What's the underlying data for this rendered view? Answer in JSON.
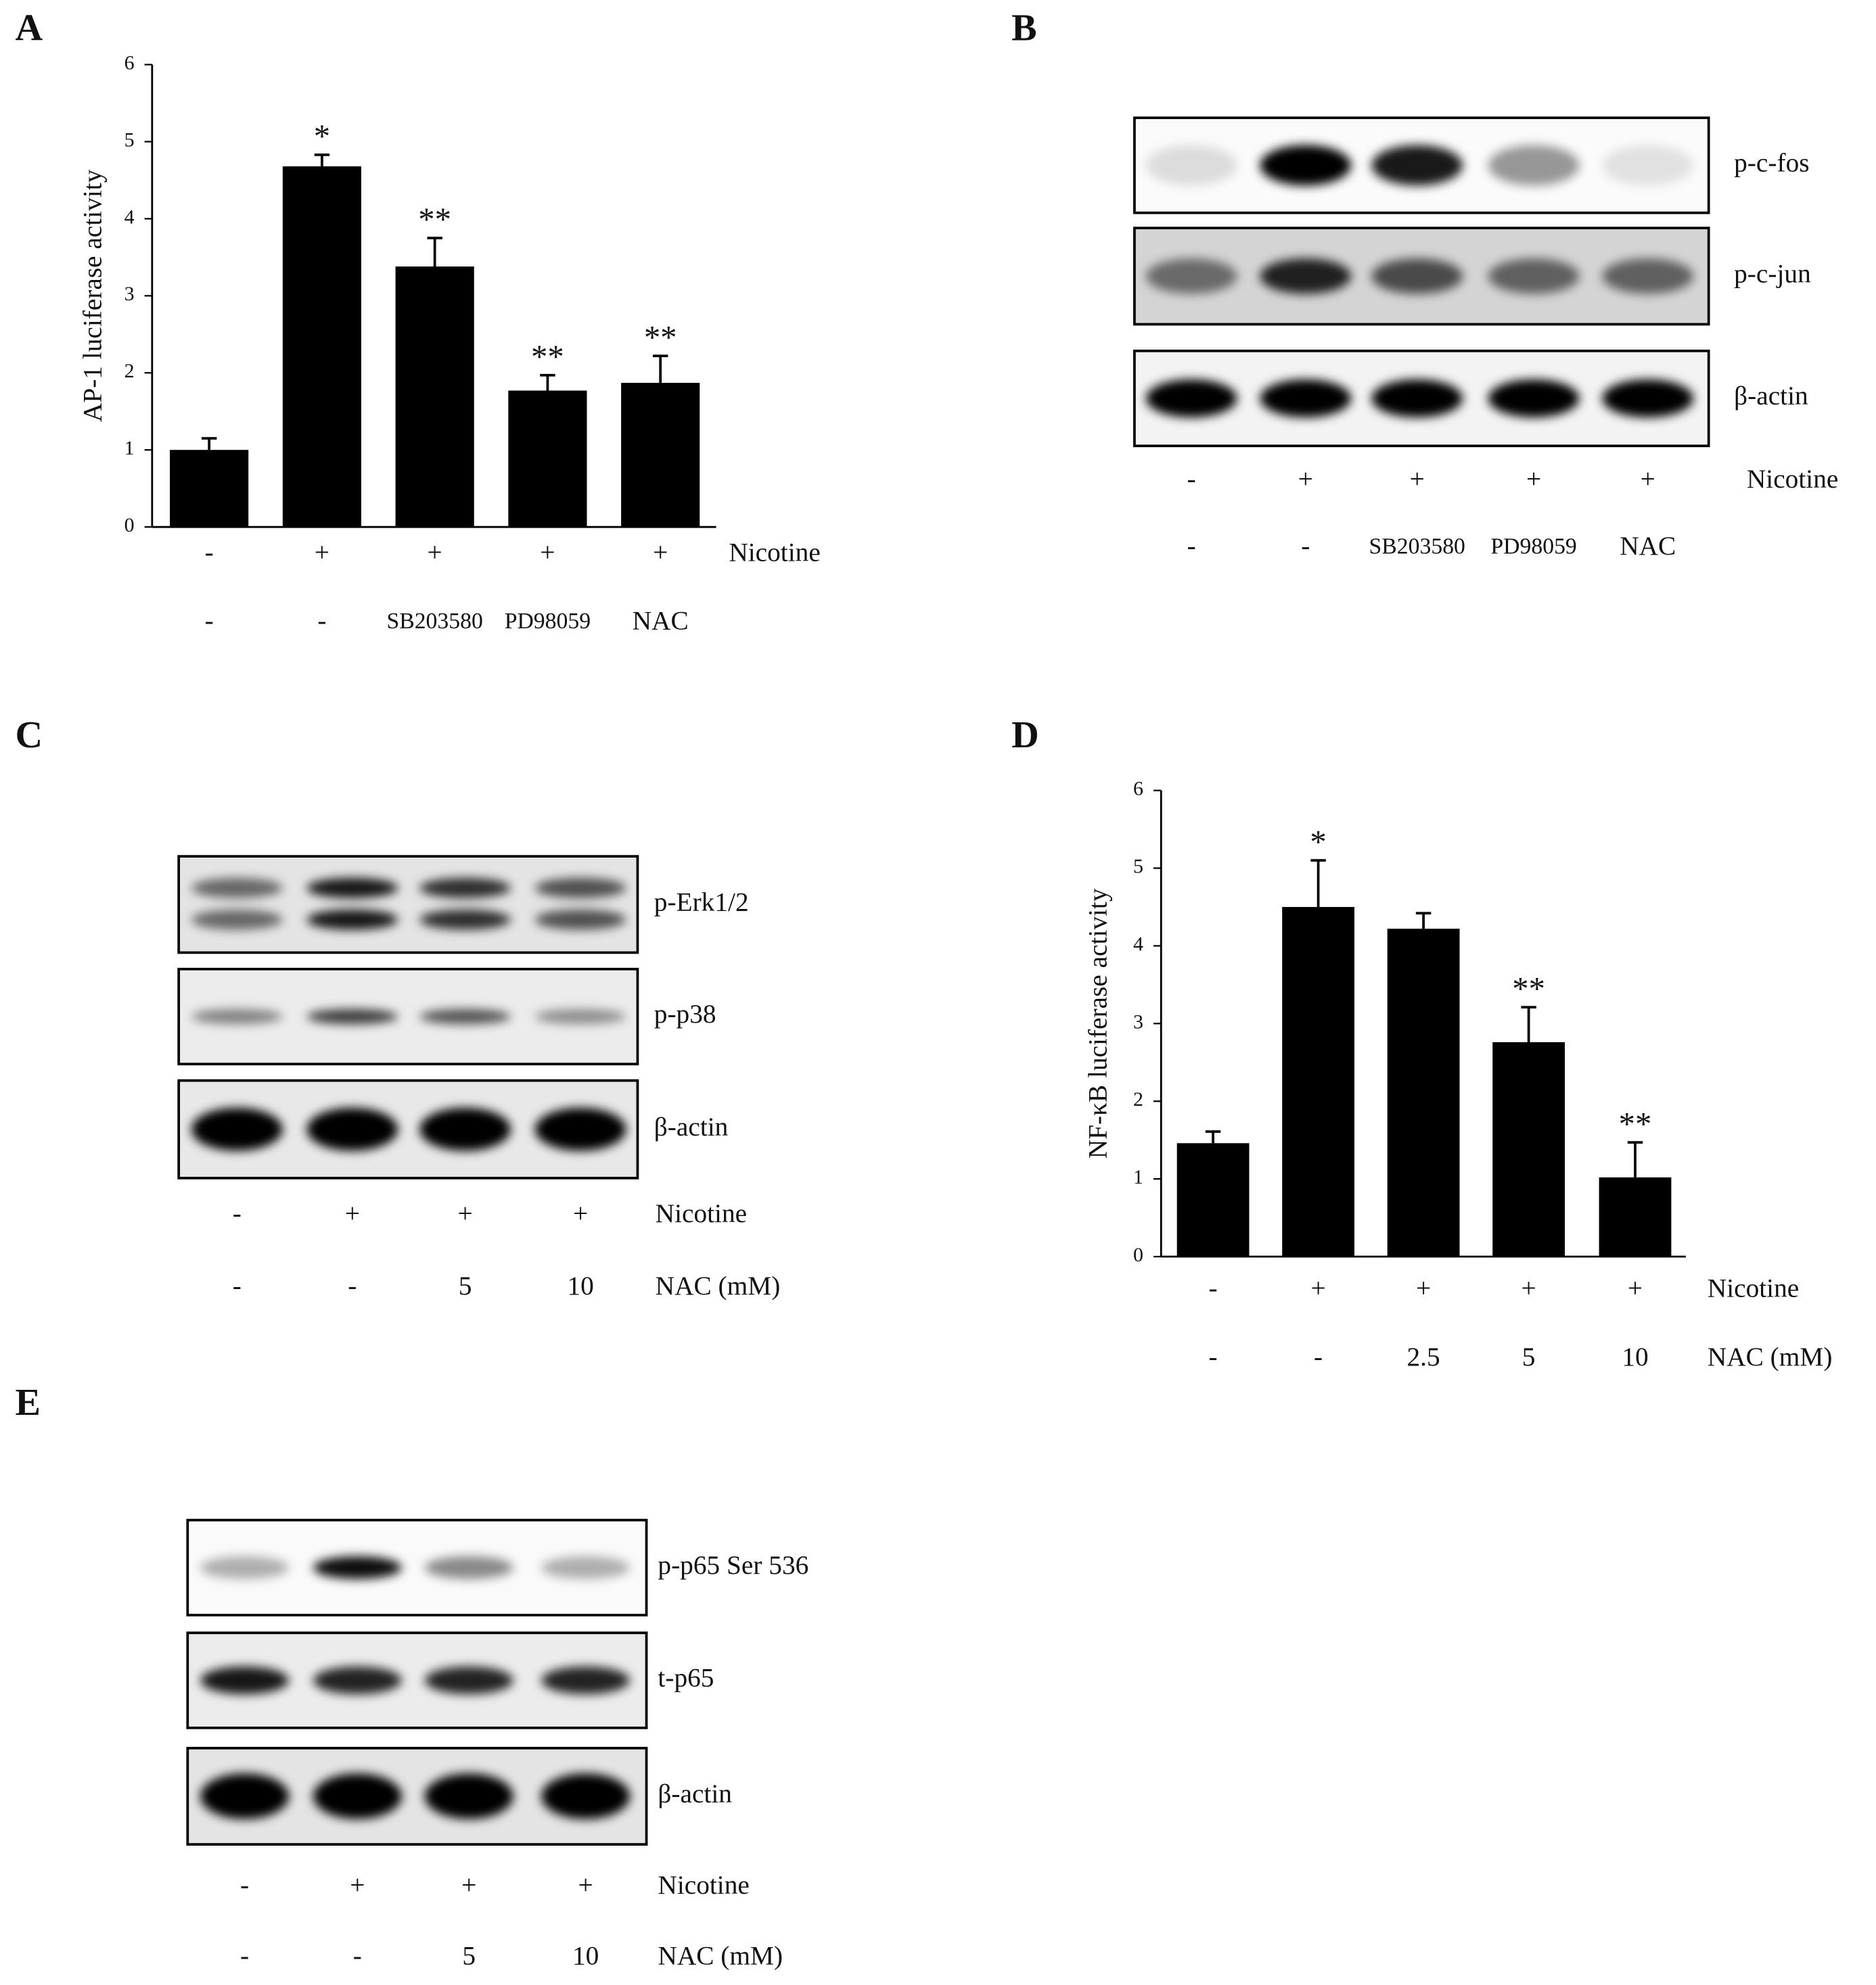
{
  "chart_data": [
    {
      "type": "bar",
      "panel": "A",
      "ylabel": "AP-1 luciferase activity",
      "rows": [
        {
          "name": "Nicotine",
          "labels": [
            "-",
            "+",
            "+",
            "+",
            "+"
          ]
        },
        {
          "labels": [
            "-",
            "-",
            "SB203580",
            "PD98059",
            "NAC"
          ]
        }
      ],
      "values": [
        1.0,
        4.68,
        3.38,
        1.77,
        1.87
      ],
      "errors": [
        0.15,
        0.15,
        0.37,
        0.2,
        0.35
      ],
      "annotations": [
        null,
        "*",
        "**",
        "**",
        "**"
      ],
      "color": "#000000",
      "ylim": [
        0,
        6
      ],
      "yticks": [
        0,
        1,
        2,
        3,
        4,
        5,
        6
      ]
    },
    {
      "type": "bar",
      "panel": "D",
      "ylabel": "NF-κB luciferase activity",
      "rows": [
        {
          "name": "Nicotine",
          "labels": [
            "-",
            "+",
            "+",
            "+",
            "+"
          ]
        },
        {
          "name": "NAC (mM)",
          "labels": [
            "-",
            "-",
            "2.5",
            "5",
            "10"
          ]
        }
      ],
      "values": [
        1.46,
        4.5,
        4.22,
        2.76,
        1.02
      ],
      "errors": [
        0.15,
        0.6,
        0.2,
        0.45,
        0.45
      ],
      "annotations": [
        null,
        "*",
        null,
        "**",
        "**"
      ],
      "color": "#000000",
      "ylim": [
        0,
        6
      ],
      "yticks": [
        0,
        1,
        2,
        3,
        4,
        5,
        6
      ]
    }
  ],
  "blots": [
    {
      "panel": "B",
      "bands": [
        "p-c-fos",
        "p-c-jun",
        "β-actin"
      ],
      "rows": [
        {
          "name": "Nicotine",
          "labels": [
            "-",
            "+",
            "+",
            "+",
            "+"
          ]
        },
        {
          "labels": [
            "-",
            "-",
            "SB203580",
            "PD98059",
            "NAC"
          ]
        }
      ]
    },
    {
      "panel": "C",
      "bands": [
        "p-Erk1/2",
        "p-p38",
        "β-actin"
      ],
      "rows": [
        {
          "name": "Nicotine",
          "labels": [
            "-",
            "+",
            "+",
            "+"
          ]
        },
        {
          "name": "NAC (mM)",
          "labels": [
            "-",
            "-",
            "5",
            "10"
          ]
        }
      ]
    },
    {
      "panel": "E",
      "bands": [
        "p-p65 Ser 536",
        "t-p65",
        "β-actin"
      ],
      "rows": [
        {
          "name": "Nicotine",
          "labels": [
            "-",
            "+",
            "+",
            "+"
          ]
        },
        {
          "name": "NAC (mM)",
          "labels": [
            "-",
            "-",
            "5",
            "10"
          ]
        }
      ]
    }
  ]
}
